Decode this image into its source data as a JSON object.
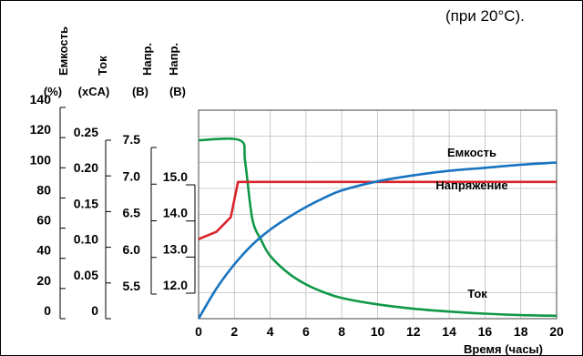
{
  "note_text": "(при 20°С).",
  "chart_data": {
    "type": "line",
    "xlabel": "Время (часы)",
    "xlim": [
      0,
      20
    ],
    "x_ticks": [
      "0",
      "2",
      "4",
      "6",
      "8",
      "10",
      "12",
      "14",
      "16",
      "18",
      "20"
    ],
    "grid": true,
    "y_axes": [
      {
        "id": "capacity",
        "title": "Емкость",
        "unit": "(%)",
        "range": [
          0,
          140
        ],
        "ticks": [
          "0",
          "20",
          "40",
          "60",
          "80",
          "100",
          "120",
          "140"
        ]
      },
      {
        "id": "current",
        "title": "Ток",
        "unit": "(xCA)",
        "range": [
          0,
          0.25
        ],
        "ticks": [
          "0",
          "0.05",
          "0.10",
          "0.15",
          "0.20",
          "0.25"
        ]
      },
      {
        "id": "voltage1",
        "title": "Напр.",
        "unit": "(B)",
        "range": [
          5.5,
          7.5
        ],
        "ticks": [
          "5.5",
          "6.0",
          "6.5",
          "7.0",
          "7.5"
        ]
      },
      {
        "id": "voltage2",
        "title": "Напр.",
        "unit": "(B)",
        "range": [
          12.0,
          15.0
        ],
        "ticks": [
          "12.0",
          "13.0",
          "14.0",
          "15.0"
        ]
      }
    ],
    "series": [
      {
        "name": "Ток",
        "axis": "current",
        "color": "#109848",
        "x": [
          0,
          2.3,
          2.6,
          3,
          3.5,
          4,
          5,
          6,
          7,
          8,
          10,
          12,
          14,
          16,
          18,
          20
        ],
        "y": [
          0.25,
          0.25,
          0.22,
          0.14,
          0.11,
          0.088,
          0.064,
          0.048,
          0.037,
          0.029,
          0.02,
          0.014,
          0.01,
          0.007,
          0.005,
          0.004
        ]
      },
      {
        "name": "Напряжение",
        "axis": "voltage1",
        "color": "#d8242a",
        "x": [
          0,
          1,
          1.8,
          2.2,
          20
        ],
        "y": [
          6.25,
          6.35,
          6.55,
          7.03,
          7.03
        ]
      },
      {
        "name": "Емкость",
        "axis": "capacity",
        "color": "#1874c0",
        "x": [
          0,
          1,
          2,
          3,
          4,
          5,
          6,
          7,
          8,
          10,
          12,
          14,
          16,
          18,
          20
        ],
        "y": [
          0,
          20,
          36,
          49,
          59,
          67,
          74,
          80,
          85,
          91,
          95,
          98,
          100,
          102,
          103.5
        ]
      }
    ]
  }
}
